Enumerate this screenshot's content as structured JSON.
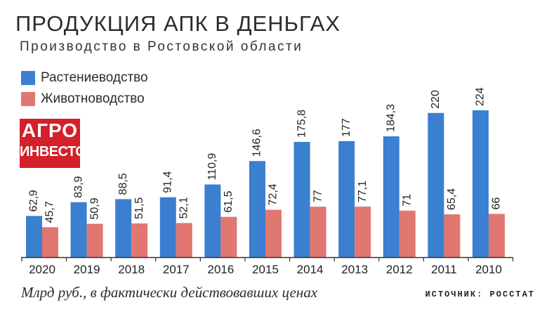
{
  "title": "ПРОДУКЦИЯ АПК В ДЕНЬГАХ",
  "subtitle": "Производство в Ростовской области",
  "logo": {
    "line1": "АГРО",
    "line2": "ИНВЕСТОР"
  },
  "footnote": "Млрд руб., в фактически действовавших ценах",
  "source": "ИСТОЧНИК: РОССТАТ",
  "chart_data": {
    "type": "bar",
    "title": "ПРОДУКЦИЯ АПК В ДЕНЬГАХ",
    "subtitle": "Производство в Ростовской области",
    "categories": [
      "2020",
      "2019",
      "2018",
      "2017",
      "2016",
      "2015",
      "2014",
      "2013",
      "2012",
      "2011",
      "2010"
    ],
    "series": [
      {
        "name": "Растениеводство",
        "color": "#3a7fd0",
        "values": [
          62.9,
          83.9,
          88.5,
          91.4,
          110.9,
          146.6,
          175.8,
          177,
          184.3,
          220,
          224
        ],
        "labels": [
          "62,9",
          "83,9",
          "88,5",
          "91,4",
          "110,9",
          "146,6",
          "175,8",
          "177",
          "184,3",
          "220",
          "224"
        ]
      },
      {
        "name": "Животноводство",
        "color": "#e07771",
        "values": [
          45.7,
          50.9,
          51.5,
          52.1,
          61.5,
          72.4,
          77,
          77.1,
          71,
          65.4,
          66
        ],
        "labels": [
          "45,7",
          "50,9",
          "51,5",
          "52,1",
          "61,5",
          "72,4",
          "77",
          "77,1",
          "71",
          "65,4",
          "66"
        ]
      }
    ],
    "ylim": [
      0,
      240
    ],
    "grid": false,
    "legend": "top-left"
  }
}
